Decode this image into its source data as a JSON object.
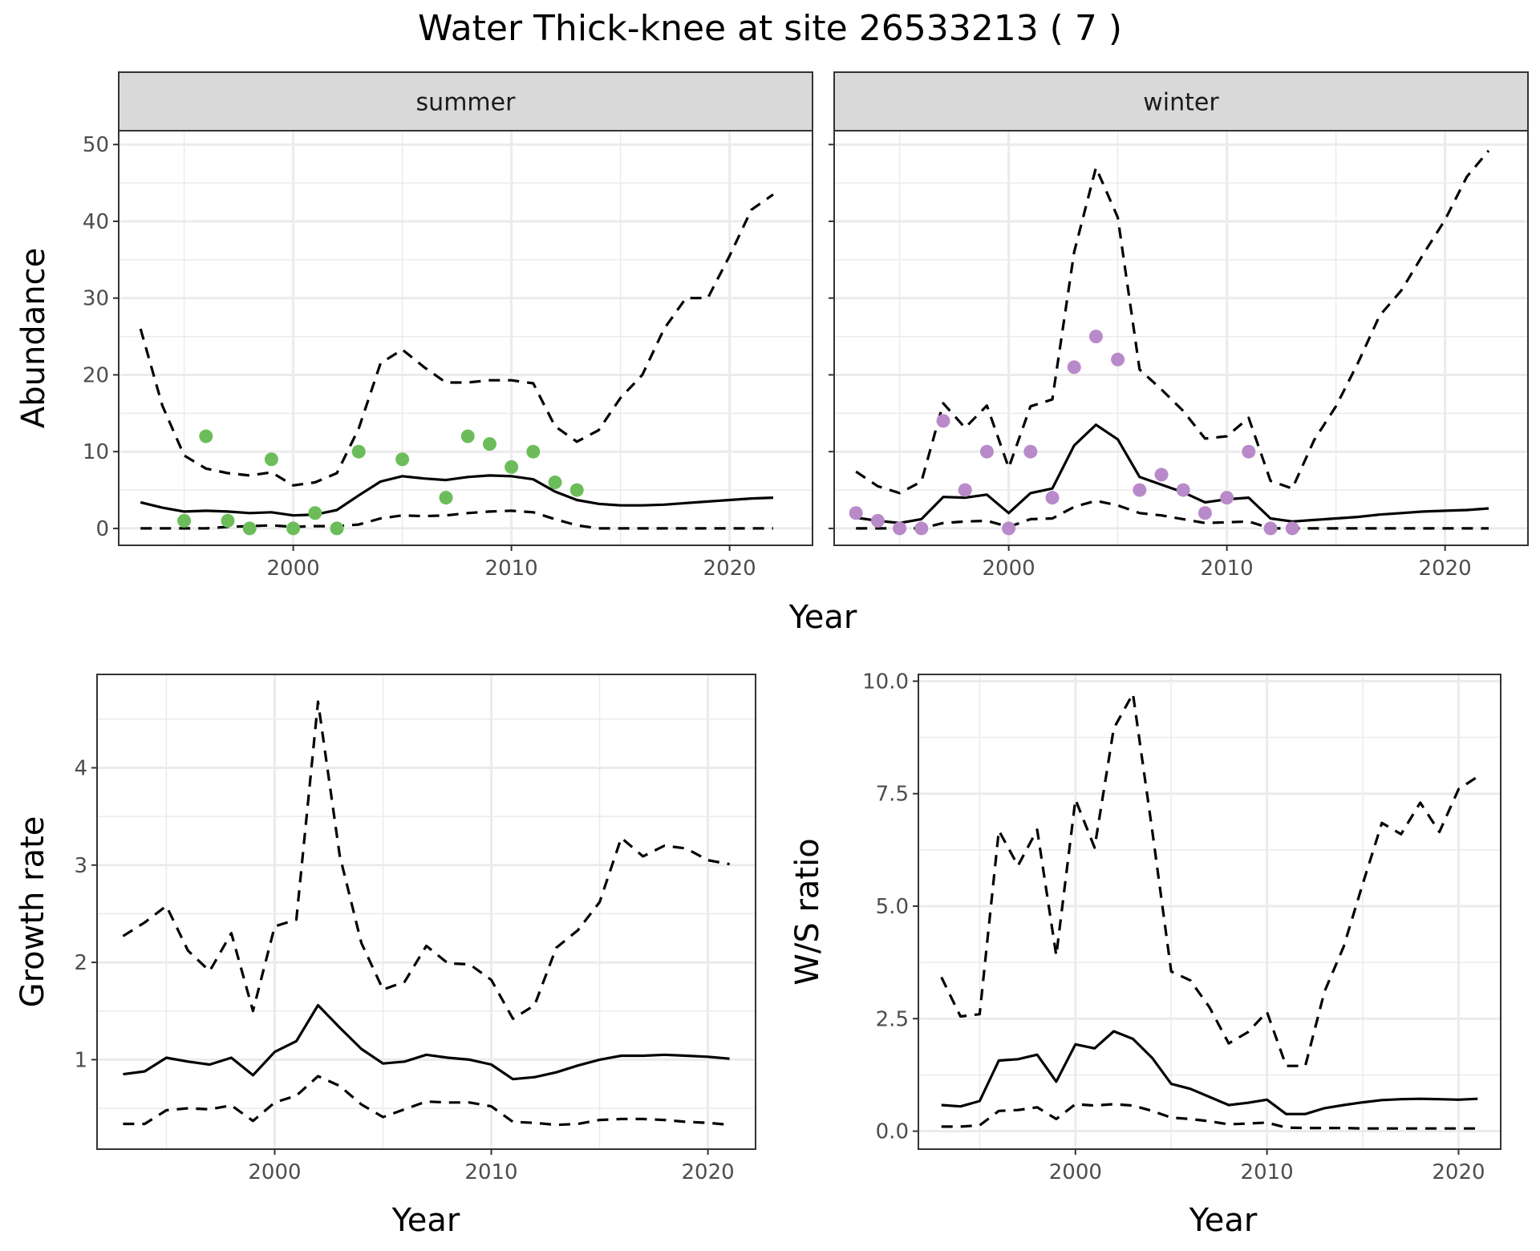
{
  "title": "Water Thick-knee at site 26533213 ( 7 )",
  "colors": {
    "summer_points": "#6cbd5a",
    "winter_points": "#b98ac9",
    "line": "#000000",
    "strip_fill": "#d9d9d9",
    "grid": "#ebebeb"
  },
  "chart_data": [
    {
      "id": "abundance-summer",
      "type": "line",
      "facet_label": "summer",
      "xlabel": "Year",
      "ylabel": "Abundance",
      "xlim": [
        1992,
        2023.8
      ],
      "ylim": [
        -2.2,
        51.8
      ],
      "xticks": [
        2000,
        2010,
        2020
      ],
      "yticks": [
        0,
        10,
        20,
        30,
        40,
        50
      ],
      "x": [
        1993,
        1994,
        1995,
        1996,
        1997,
        1998,
        1999,
        2000,
        2001,
        2002,
        2003,
        2004,
        2005,
        2006,
        2007,
        2008,
        2009,
        2010,
        2011,
        2012,
        2013,
        2014,
        2015,
        2016,
        2017,
        2018,
        2019,
        2020,
        2021,
        2022
      ],
      "series": [
        {
          "role": "mean",
          "style": "solid",
          "values": [
            3.4,
            2.7,
            2.2,
            2.3,
            2.2,
            2.0,
            2.1,
            1.7,
            1.8,
            2.4,
            4.3,
            6.1,
            6.8,
            6.5,
            6.3,
            6.7,
            6.9,
            6.8,
            6.4,
            4.8,
            3.7,
            3.2,
            3.0,
            3.0,
            3.1,
            3.3,
            3.5,
            3.7,
            3.9,
            4.0
          ]
        },
        {
          "role": "upper",
          "style": "dashed",
          "values": [
            26,
            16,
            9.5,
            7.8,
            7.2,
            6.9,
            7.3,
            5.6,
            6.0,
            7.2,
            13,
            21.5,
            23.3,
            21,
            19,
            19,
            19.3,
            19.3,
            18.9,
            13.3,
            11.3,
            12.8,
            17,
            20,
            26,
            30,
            30,
            35.5,
            41.5,
            43.5
          ]
        },
        {
          "role": "lower",
          "style": "dashed",
          "values": [
            0,
            0,
            0,
            0,
            0.2,
            0.3,
            0.4,
            0.2,
            0.3,
            0.3,
            0.5,
            1.3,
            1.7,
            1.6,
            1.7,
            2.0,
            2.2,
            2.3,
            2.1,
            1.2,
            0.4,
            0,
            0,
            0,
            0,
            0,
            0,
            0,
            0,
            0
          ]
        }
      ],
      "points": {
        "x": [
          1995,
          1996,
          1997,
          1998,
          1999,
          2000,
          2001,
          2002,
          2003,
          2005,
          2007,
          2008,
          2009,
          2010,
          2011,
          2012,
          2013
        ],
        "y": [
          1,
          12,
          1,
          0,
          9,
          0,
          2,
          0,
          10,
          9,
          4,
          12,
          11,
          8,
          10,
          6,
          5
        ]
      }
    },
    {
      "id": "abundance-winter",
      "type": "line",
      "facet_label": "winter",
      "xlabel": "Year",
      "ylabel": "Abundance",
      "xlim": [
        1992,
        2023.8
      ],
      "ylim": [
        -2.2,
        51.8
      ],
      "xticks": [
        2000,
        2010,
        2020
      ],
      "yticks": [
        0,
        10,
        20,
        30,
        40,
        50
      ],
      "x": [
        1993,
        1994,
        1995,
        1996,
        1997,
        1998,
        1999,
        2000,
        2001,
        2002,
        2003,
        2004,
        2005,
        2006,
        2007,
        2008,
        2009,
        2010,
        2011,
        2012,
        2013,
        2014,
        2015,
        2016,
        2017,
        2018,
        2019,
        2020,
        2021,
        2022
      ],
      "series": [
        {
          "role": "mean",
          "style": "solid",
          "values": [
            1.4,
            1.0,
            0.7,
            1.2,
            4.1,
            4.0,
            4.4,
            2.0,
            4.6,
            5.2,
            10.8,
            13.5,
            11.6,
            6.7,
            5.7,
            4.7,
            3.4,
            3.8,
            4.0,
            1.3,
            0.9,
            1.1,
            1.3,
            1.5,
            1.8,
            2.0,
            2.2,
            2.3,
            2.4,
            2.6
          ]
        },
        {
          "role": "upper",
          "style": "dashed",
          "values": [
            7.4,
            5.5,
            4.6,
            6.1,
            16.3,
            13.1,
            16.0,
            7.9,
            15.9,
            16.8,
            36,
            47,
            40.5,
            20.7,
            18.1,
            15.3,
            11.7,
            12.0,
            14.4,
            6.2,
            5.2,
            11.5,
            15.9,
            21.5,
            27.7,
            31,
            35.7,
            40.2,
            45.8,
            49.2
          ]
        },
        {
          "role": "lower",
          "style": "dashed",
          "values": [
            0,
            0,
            0,
            0,
            0.7,
            0.9,
            1.0,
            0.2,
            1.2,
            1.3,
            2.8,
            3.6,
            3.0,
            2.0,
            1.7,
            1.2,
            0.7,
            0.8,
            0.9,
            0,
            0,
            0,
            0,
            0,
            0,
            0,
            0,
            0,
            0,
            0
          ]
        }
      ],
      "points": {
        "x": [
          1993,
          1994,
          1995,
          1996,
          1997,
          1998,
          1999,
          2000,
          2001,
          2002,
          2003,
          2004,
          2005,
          2006,
          2007,
          2008,
          2009,
          2010,
          2011,
          2012,
          2013
        ],
        "y": [
          2,
          1,
          0,
          0,
          14,
          5,
          10,
          0,
          10,
          4,
          21,
          25,
          22,
          5,
          7,
          5,
          2,
          4,
          10,
          0,
          0
        ]
      }
    },
    {
      "id": "growth-rate",
      "type": "line",
      "xlabel": "Year",
      "ylabel": "Growth rate",
      "xlim": [
        1991.8,
        2022.2
      ],
      "ylim": [
        0.08,
        4.96
      ],
      "xticks": [
        2000,
        2010,
        2020
      ],
      "yticks": [
        1,
        2,
        3,
        4
      ],
      "x": [
        1993,
        1994,
        1995,
        1996,
        1997,
        1998,
        1999,
        2000,
        2001,
        2002,
        2003,
        2004,
        2005,
        2006,
        2007,
        2008,
        2009,
        2010,
        2011,
        2012,
        2013,
        2014,
        2015,
        2016,
        2017,
        2018,
        2019,
        2020,
        2021
      ],
      "series": [
        {
          "role": "mean",
          "style": "solid",
          "values": [
            0.85,
            0.88,
            1.02,
            0.98,
            0.95,
            1.02,
            0.84,
            1.08,
            1.19,
            1.56,
            1.33,
            1.11,
            0.96,
            0.98,
            1.05,
            1.02,
            1.0,
            0.95,
            0.8,
            0.82,
            0.87,
            0.94,
            1.0,
            1.04,
            1.04,
            1.05,
            1.04,
            1.03,
            1.01
          ]
        },
        {
          "role": "upper",
          "style": "dashed",
          "values": [
            2.27,
            2.41,
            2.58,
            2.12,
            1.91,
            2.3,
            1.5,
            2.37,
            2.44,
            4.68,
            3.1,
            2.2,
            1.72,
            1.8,
            2.17,
            1.99,
            1.98,
            1.82,
            1.42,
            1.56,
            2.15,
            2.33,
            2.62,
            3.28,
            3.09,
            3.2,
            3.17,
            3.05,
            3.01
          ]
        },
        {
          "role": "lower",
          "style": "dashed",
          "values": [
            0.34,
            0.34,
            0.48,
            0.5,
            0.49,
            0.53,
            0.37,
            0.56,
            0.63,
            0.83,
            0.73,
            0.54,
            0.41,
            0.49,
            0.57,
            0.56,
            0.56,
            0.52,
            0.36,
            0.35,
            0.33,
            0.34,
            0.38,
            0.39,
            0.39,
            0.38,
            0.36,
            0.35,
            0.33
          ]
        }
      ]
    },
    {
      "id": "ws-ratio",
      "type": "line",
      "xlabel": "Year",
      "ylabel": "W/S ratio",
      "xlim": [
        1991.8,
        2022.2
      ],
      "ylim": [
        -0.4,
        10.15
      ],
      "xticks": [
        2000,
        2010,
        2020
      ],
      "yticks": [
        0.0,
        2.5,
        5.0,
        7.5,
        10.0
      ],
      "ytick_labels": [
        "0.0",
        "2.5",
        "5.0",
        "7.5",
        "10.0"
      ],
      "x": [
        1993,
        1994,
        1995,
        1996,
        1997,
        1998,
        1999,
        2000,
        2001,
        2002,
        2003,
        2004,
        2005,
        2006,
        2007,
        2008,
        2009,
        2010,
        2011,
        2012,
        2013,
        2014,
        2015,
        2016,
        2017,
        2018,
        2019,
        2020,
        2021
      ],
      "series": [
        {
          "role": "mean",
          "style": "solid",
          "values": [
            0.58,
            0.55,
            0.67,
            1.57,
            1.6,
            1.7,
            1.1,
            1.93,
            1.84,
            2.22,
            2.05,
            1.63,
            1.05,
            0.94,
            0.76,
            0.58,
            0.63,
            0.7,
            0.38,
            0.38,
            0.51,
            0.58,
            0.64,
            0.69,
            0.71,
            0.72,
            0.71,
            0.7,
            0.72
          ]
        },
        {
          "role": "upper",
          "style": "dashed",
          "values": [
            3.42,
            2.55,
            2.6,
            6.68,
            5.9,
            6.7,
            3.9,
            7.37,
            6.3,
            8.95,
            9.72,
            6.7,
            3.55,
            3.35,
            2.75,
            1.95,
            2.2,
            2.65,
            1.45,
            1.45,
            3.1,
            4.1,
            5.5,
            6.85,
            6.6,
            7.3,
            6.65,
            7.6,
            7.88
          ]
        },
        {
          "role": "lower",
          "style": "dashed",
          "values": [
            0.1,
            0.1,
            0.13,
            0.45,
            0.47,
            0.53,
            0.27,
            0.6,
            0.57,
            0.6,
            0.57,
            0.45,
            0.3,
            0.27,
            0.22,
            0.15,
            0.17,
            0.19,
            0.08,
            0.07,
            0.07,
            0.07,
            0.06,
            0.06,
            0.06,
            0.06,
            0.06,
            0.06,
            0.06
          ]
        }
      ]
    }
  ]
}
